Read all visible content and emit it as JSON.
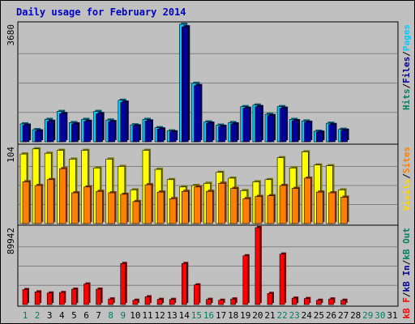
{
  "chart_data": {
    "type": "bar",
    "title": "Daily usage for February 2014",
    "days": [
      "1",
      "2",
      "3",
      "4",
      "5",
      "6",
      "7",
      "8",
      "9",
      "10",
      "11",
      "12",
      "13",
      "14",
      "15",
      "16",
      "17",
      "18",
      "19",
      "20",
      "21",
      "22",
      "23",
      "24",
      "25",
      "26",
      "27",
      "28",
      "29",
      "30",
      "31"
    ],
    "weekend_days": [
      "1",
      "2",
      "8",
      "9",
      "15",
      "16",
      "22",
      "23",
      "29",
      "30"
    ],
    "panels": [
      {
        "name": "hits-files",
        "max_label": "3680",
        "ymax": 3680,
        "series": [
          {
            "name": "Hits",
            "color": "#00CCFF",
            "values": [
              560,
              380,
              700,
              950,
              600,
              700,
              950,
              680,
              1300,
              530,
              700,
              440,
              340,
              3680,
              1830,
              620,
              520,
              600,
              1100,
              1150,
              860,
              1100,
              700,
              650,
              330,
              580,
              390,
              0,
              0,
              0,
              0
            ]
          },
          {
            "name": "Files",
            "color": "#000099",
            "values": [
              520,
              340,
              640,
              880,
              560,
              640,
              880,
              630,
              1240,
              500,
              650,
              400,
              310,
              3600,
              1760,
              580,
              480,
              560,
              1050,
              1100,
              820,
              1050,
              660,
              610,
              300,
              540,
              360,
              0,
              0,
              0,
              0
            ]
          }
        ],
        "legend": [
          {
            "text": "Hits",
            "color": "#00805c"
          },
          {
            "text": "/",
            "color": "#000000"
          },
          {
            "text": "Files",
            "color": "#000099"
          },
          {
            "text": "/",
            "color": "#000000"
          },
          {
            "text": "Pages",
            "color": "#00CCFF"
          }
        ]
      },
      {
        "name": "visits-sites",
        "max_label": "104",
        "ymax": 104,
        "series": [
          {
            "name": "Visits",
            "color": "#FFFF00",
            "values": [
              95,
              102,
              96,
              100,
              88,
              100,
              76,
              88,
              78,
              46,
              100,
              74,
              60,
              50,
              52,
              55,
              70,
              62,
              45,
              57,
              60,
              90,
              76,
              98,
              80,
              79,
              46,
              0,
              0,
              0,
              0
            ]
          },
          {
            "name": "Sites",
            "color": "#FF8000",
            "values": [
              57,
              52,
              60,
              75,
              42,
              50,
              44,
              42,
              40,
              30,
              53,
              43,
              34,
              44,
              50,
              44,
              55,
              48,
              34,
              37,
              38,
              52,
              48,
              62,
              43,
              42,
              36,
              0,
              0,
              0,
              0
            ]
          }
        ],
        "legend": [
          {
            "text": "Visits",
            "color": "#FFD700"
          },
          {
            "text": "/",
            "color": "#000000"
          },
          {
            "text": "Sites",
            "color": "#FF8000"
          }
        ]
      },
      {
        "name": "kbytes",
        "max_label": "89942",
        "ymax": 89942,
        "series": [
          {
            "name": "KBytes F",
            "color": "#FF0000",
            "values": [
              17500,
              14800,
              13500,
              14000,
              18000,
              24000,
              18000,
              6500,
              48000,
              5000,
              9000,
              6000,
              6000,
              48000,
              23000,
              6000,
              5000,
              6500,
              57000,
              89942,
              13000,
              59000,
              7500,
              7000,
              5000,
              6500,
              5000,
              0,
              0,
              0,
              0
            ]
          }
        ],
        "legend": [
          {
            "text": "kB F",
            "color": "#FF0000"
          },
          {
            "text": "/",
            "color": "#000000"
          },
          {
            "text": "kB In",
            "color": "#000099"
          },
          {
            "text": "/",
            "color": "#000000"
          },
          {
            "text": "kB Out",
            "color": "#00805c"
          }
        ]
      }
    ]
  }
}
